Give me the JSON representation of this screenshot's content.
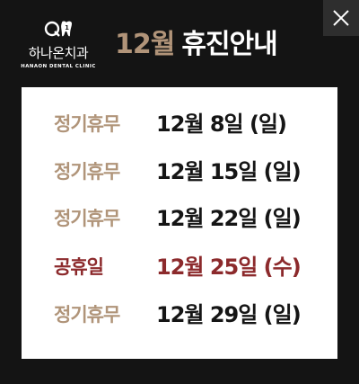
{
  "close_label": "Close",
  "logo": {
    "name": "하나온치과",
    "sub": "HANAON DENTAL CLINIC"
  },
  "title": {
    "month": "12월",
    "rest": "휴진안내"
  },
  "schedule": [
    {
      "type": "정기휴무",
      "date": "12월 8일 (일)"
    },
    {
      "type": "정기휴무",
      "date": "12월 15일 (일)"
    },
    {
      "type": "정기휴무",
      "date": "12월 22일 (일)"
    },
    {
      "type": "공휴일",
      "date": "12월 25일 (수)"
    },
    {
      "type": "정기휴무",
      "date": "12월 29일 (일)"
    }
  ],
  "colors": {
    "accent": "#b09479",
    "holiday": "#8c2a2c",
    "background": "#141414"
  }
}
